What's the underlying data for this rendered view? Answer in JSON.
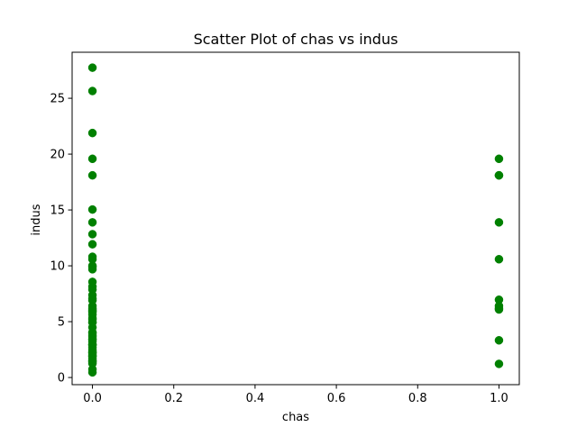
{
  "chart_data": {
    "type": "scatter",
    "title": "Scatter Plot of chas vs indus",
    "xlabel": "chas",
    "ylabel": "indus",
    "xlim": [
      -0.05,
      1.05
    ],
    "ylim": [
      -0.64,
      29.12
    ],
    "x_ticks": [
      0.0,
      0.2,
      0.4,
      0.6,
      0.8,
      1.0
    ],
    "x_tick_labels": [
      "0.0",
      "0.2",
      "0.4",
      "0.6",
      "0.8",
      "1.0"
    ],
    "y_ticks": [
      0,
      5,
      10,
      15,
      20,
      25
    ],
    "y_tick_labels": [
      "0",
      "5",
      "10",
      "15",
      "20",
      "25"
    ],
    "grid": false,
    "legend": "none",
    "marker_color": "#008000",
    "series": [
      {
        "x": [
          0,
          0,
          0,
          0,
          0,
          0,
          0,
          0,
          0,
          0,
          0,
          0,
          0,
          0,
          0,
          0,
          0,
          0,
          0,
          0,
          0,
          0,
          0,
          0,
          0,
          0,
          0,
          0,
          0,
          0,
          0,
          0,
          0,
          0,
          0,
          0,
          0,
          0,
          0,
          0,
          0,
          0,
          0,
          0,
          0,
          0,
          0,
          0,
          0,
          0,
          0,
          0,
          0,
          0,
          0,
          0,
          1,
          1,
          1,
          1,
          1,
          1,
          1,
          1,
          1,
          1,
          1
        ],
        "y": [
          27.74,
          25.65,
          21.89,
          19.58,
          18.1,
          15.04,
          13.89,
          12.83,
          11.93,
          10.81,
          10.59,
          10.01,
          9.9,
          9.69,
          8.56,
          8.14,
          7.87,
          7.38,
          7.07,
          6.91,
          6.41,
          6.2,
          6.06,
          5.86,
          5.64,
          5.32,
          5.19,
          4.95,
          4.49,
          4.05,
          3.97,
          3.64,
          3.44,
          3.41,
          3.24,
          2.97,
          2.89,
          2.68,
          2.46,
          2.31,
          2.24,
          2.18,
          2.02,
          1.91,
          1.69,
          1.52,
          1.47,
          1.38,
          1.25,
          0.74,
          0.46,
          5.96,
          4.93,
          3.78,
          2.95,
          1.89,
          19.58,
          18.1,
          13.89,
          10.59,
          6.96,
          6.41,
          6.2,
          6.09,
          3.33,
          1.22,
          18.1
        ]
      }
    ]
  }
}
